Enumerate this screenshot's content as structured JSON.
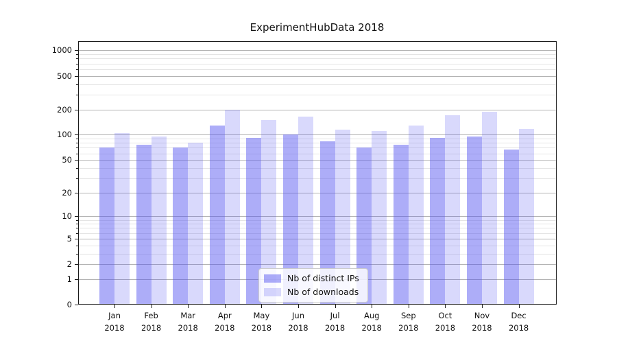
{
  "title": "ExperimentHubData 2018",
  "chart_data": {
    "type": "bar",
    "title": "ExperimentHubData 2018",
    "categories": [
      "Jan",
      "Feb",
      "Mar",
      "Apr",
      "May",
      "Jun",
      "Jul",
      "Aug",
      "Sep",
      "Oct",
      "Nov",
      "Dec"
    ],
    "year_label": "2018",
    "series": [
      {
        "name": "Nb of distinct IPs",
        "values": [
          70,
          76,
          70,
          130,
          91,
          100,
          83,
          70,
          76,
          92,
          95,
          66
        ]
      },
      {
        "name": "Nb of downloads",
        "values": [
          105,
          95,
          81,
          200,
          150,
          165,
          115,
          110,
          128,
          170,
          188,
          118
        ]
      }
    ],
    "yscale": "log1p",
    "y_ticks": [
      0,
      1,
      2,
      5,
      10,
      20,
      50,
      100,
      200,
      500,
      1000
    ],
    "y_minor_gridlines": [
      3,
      4,
      6,
      7,
      8,
      9,
      30,
      40,
      60,
      70,
      80,
      90,
      300,
      400,
      600,
      700,
      800,
      900
    ],
    "ylim": [
      0,
      1280
    ],
    "xlabel": "",
    "ylabel": "",
    "grid": true,
    "legend_position": "lower center"
  },
  "colors": {
    "bar_ips": "rgba(80,80,240,0.47)",
    "bar_downloads": "rgba(80,80,240,0.22)",
    "grid_major": "#b3b3b3",
    "grid_minor": "#e4e4e4",
    "spine": "#1a1a1a",
    "text": "#111111"
  }
}
